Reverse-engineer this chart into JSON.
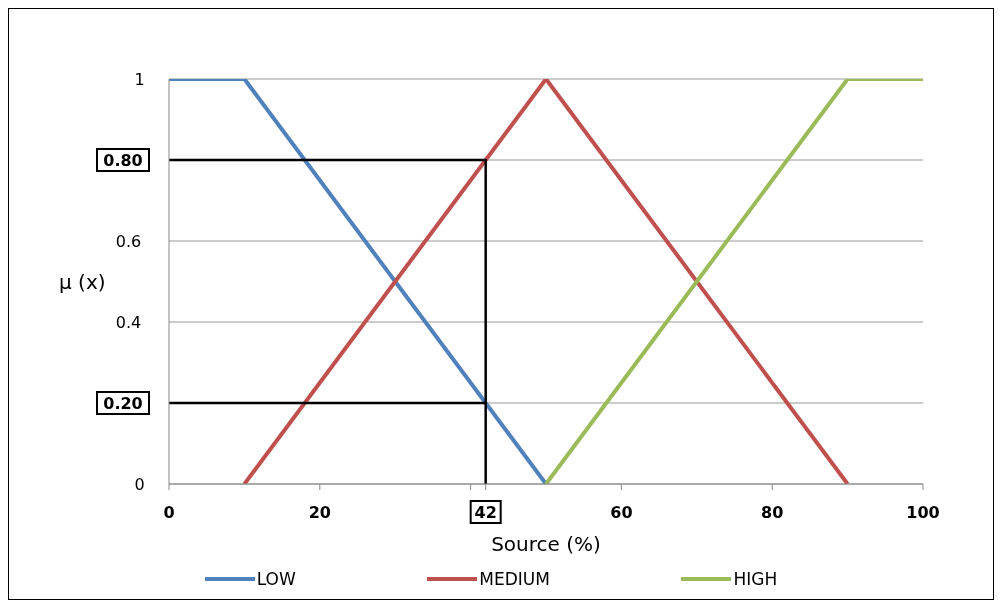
{
  "chart_data": {
    "type": "line",
    "xlabel": "Source (%)",
    "ylabel": "μ (x)",
    "xlim": [
      0,
      100
    ],
    "xticks": [
      0,
      20,
      {
        "value": 40,
        "label": null
      },
      {
        "value": 42,
        "label": "42"
      },
      60,
      80,
      100
    ],
    "ylim": [
      0,
      1
    ],
    "yticks": [
      0,
      {
        "value": 0.2,
        "label": "0.20"
      },
      0.4,
      0.6,
      {
        "value": 0.8,
        "label": "0.80"
      },
      1
    ],
    "grid": "y",
    "legend": "bottom",
    "marker": "none",
    "line_style": "solid",
    "series": [
      {
        "name": "LOW",
        "color": "#4f81bd",
        "x": [
          0,
          10,
          50
        ],
        "values": [
          1,
          1,
          0
        ]
      },
      {
        "name": "MEDIUM",
        "color": "#c0504d",
        "x": [
          10,
          50,
          90
        ],
        "values": [
          0,
          1,
          0
        ]
      },
      {
        "name": "HIGH",
        "color": "#9bbb59",
        "x": [
          50,
          90,
          100
        ],
        "values": [
          0,
          1,
          1
        ]
      },
      {
        "color": "#000000",
        "x": [
          0,
          42,
          42
        ],
        "values": [
          0.8,
          0.8,
          0
        ]
      },
      {
        "color": "#000000",
        "x": [
          0,
          42
        ],
        "values": [
          0.2,
          0.2
        ]
      }
    ]
  }
}
